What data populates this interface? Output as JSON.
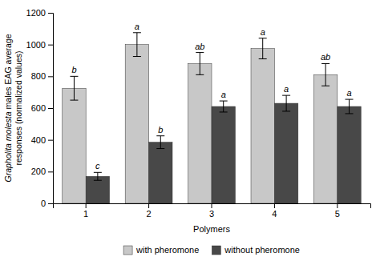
{
  "chart_data": {
    "type": "bar",
    "categories": [
      "1",
      "2",
      "3",
      "4",
      "5"
    ],
    "series": [
      {
        "name": "with pheromone",
        "color": "#c8c8c8",
        "values": [
          725,
          1000,
          880,
          975,
          810
        ],
        "errors": [
          75,
          75,
          70,
          65,
          70
        ],
        "annotations": [
          "b",
          "a",
          "ab",
          "a",
          "ab"
        ]
      },
      {
        "name": "without pheromone",
        "color": "#484848",
        "values": [
          170,
          385,
          610,
          630,
          610
        ],
        "errors": [
          25,
          40,
          35,
          50,
          45
        ],
        "annotations": [
          "c",
          "b",
          "a",
          "a",
          "a"
        ]
      }
    ],
    "xlabel": "Polymers",
    "ylabel": [
      "Grapholita molesta males EAG average",
      "responses (normalized values)"
    ],
    "ylim": [
      0,
      1200
    ],
    "yticks": [
      0,
      200,
      400,
      600,
      800,
      1000,
      1200
    ],
    "legend": "bottom"
  }
}
